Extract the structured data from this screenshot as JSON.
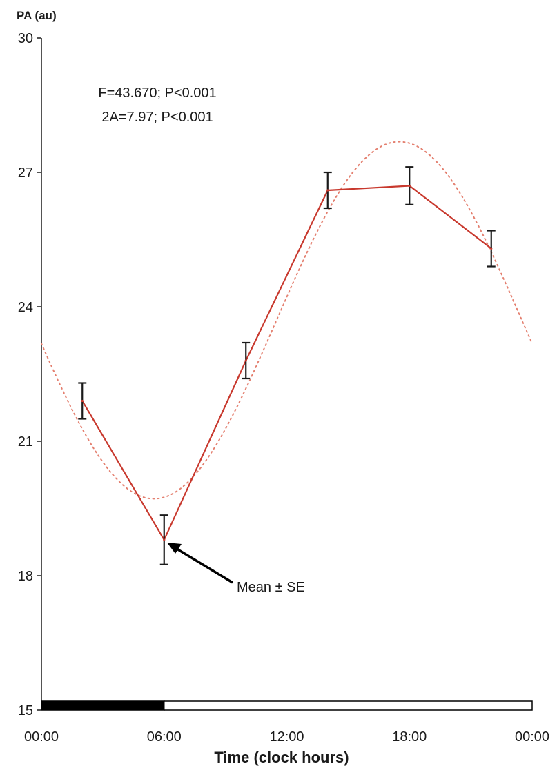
{
  "chart_data": {
    "type": "line",
    "ylabel": "PA (au)",
    "xlabel": "Time (clock hours)",
    "ylim": [
      15,
      30
    ],
    "yticks": [
      "15",
      "18",
      "21",
      "24",
      "27",
      "30"
    ],
    "xlim": [
      0,
      24
    ],
    "xticks": [
      "00:00",
      "06:00",
      "12:00",
      "18:00",
      "00:00"
    ],
    "grid": false,
    "statistics": [
      "F=43.670; P<0.001",
      "2A=7.97; P<0.001"
    ],
    "annotation": "Mean ± SE",
    "series": [
      {
        "style": "solid",
        "color": "#c8382d",
        "x": [
          2,
          6,
          10,
          14,
          18,
          22
        ],
        "y": [
          21.9,
          18.8,
          22.8,
          26.6,
          26.7,
          25.3
        ],
        "error": [
          0.4,
          0.55,
          0.4,
          0.4,
          0.42,
          0.4
        ]
      },
      {
        "style": "dotted",
        "color": "#e48070",
        "fit": "cosinor",
        "mesor": 23.7,
        "amplitude": 3.985,
        "acrophase_hours": 17.5,
        "period_hours": 24
      }
    ],
    "light_dark_bar": {
      "dark": [
        0,
        6
      ],
      "light": [
        6,
        24
      ],
      "dark_color": "#000000",
      "light_color": "#ffffff"
    }
  }
}
